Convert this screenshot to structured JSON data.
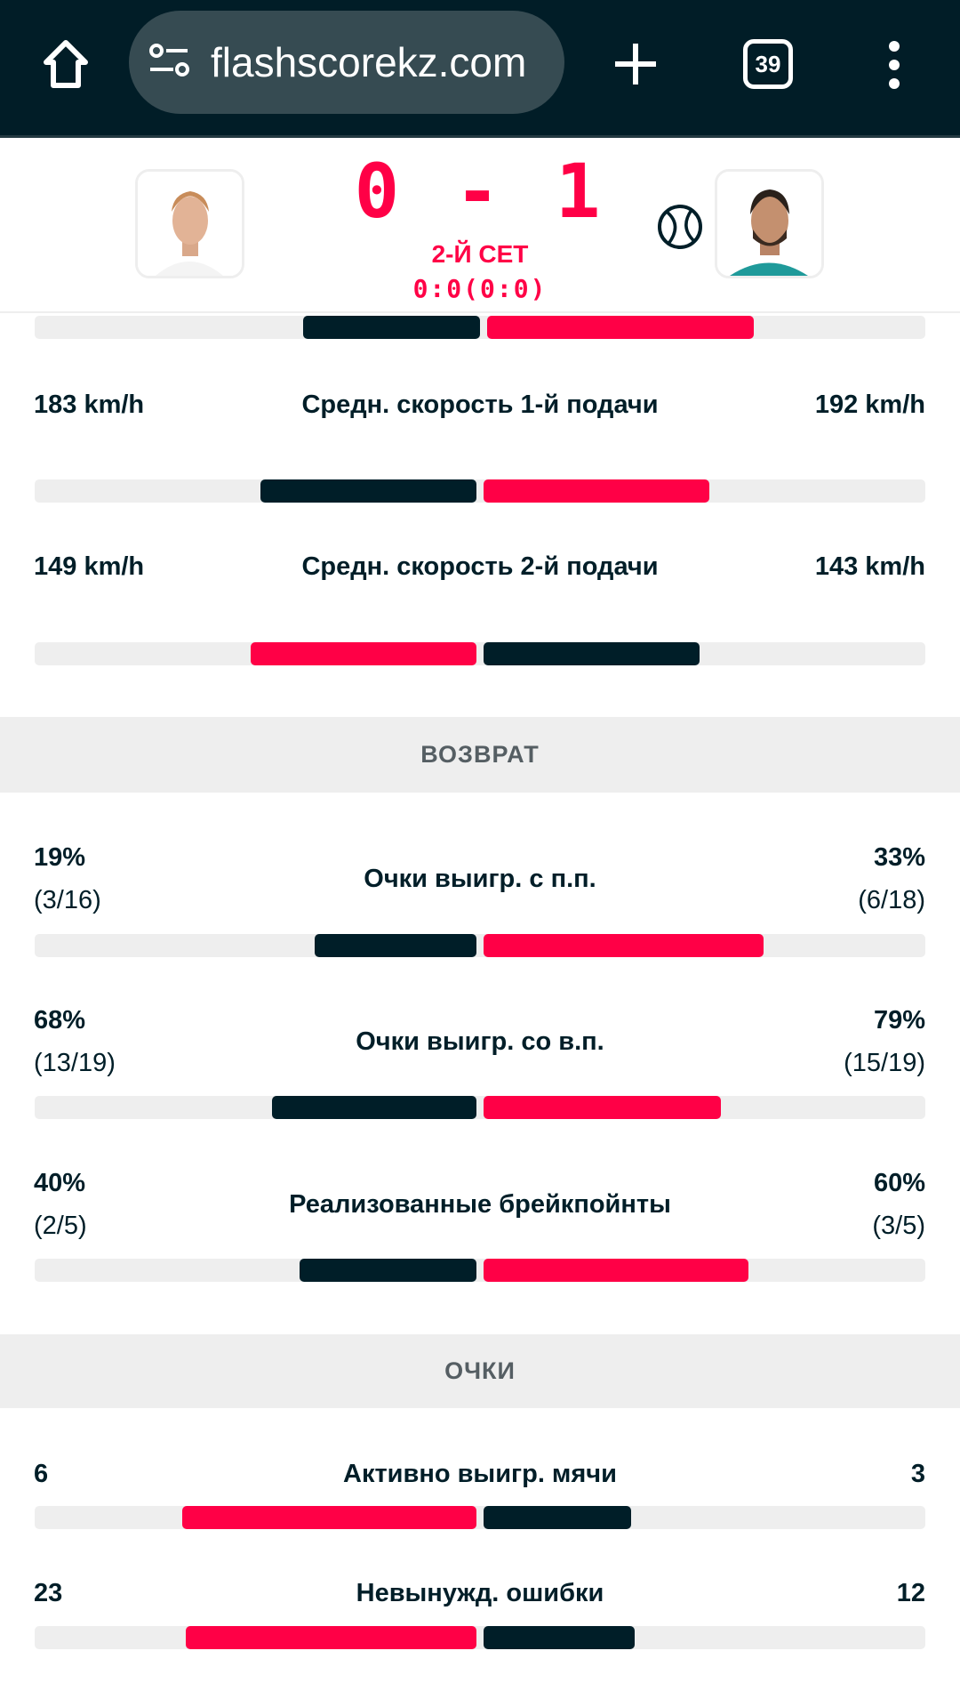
{
  "browser": {
    "url": "flashscorekz.com",
    "tab_count": "39",
    "icons": [
      "home-icon",
      "site-settings-icon",
      "new-tab-icon",
      "tab-switcher-icon",
      "menu-icon"
    ]
  },
  "match": {
    "score": "0 - 1",
    "period": "2-Й СЕТ",
    "games": "0:0(0:0)",
    "serving": "right",
    "serve_icon": "tennis-ball-icon"
  },
  "colors": {
    "accent": "#ff0046",
    "dark": "#001e28",
    "track": "#eeeeee",
    "topbar": "#011d27"
  },
  "top_partial_bar": {
    "left_share": 0.4,
    "right_share": 0.6,
    "left_color": "dark",
    "right_color": "accent"
  },
  "rows_serve": [
    {
      "left": "183 km/h",
      "label": "Средн. скорость 1-й подачи",
      "right": "192 km/h",
      "left_num": 183,
      "right_num": 192
    },
    {
      "left": "149 km/h",
      "label": "Средн. скорость 2-й подачи",
      "right": "143 km/h",
      "left_num": 149,
      "right_num": 143
    }
  ],
  "sections": [
    {
      "title": "ВОЗВРАТ",
      "rows": [
        {
          "left": "19%",
          "left_frac": "(3/16)",
          "label": "Очки выигр. с п.п.",
          "right": "33%",
          "right_frac": "(6/18)",
          "left_num": 19,
          "right_num": 33
        },
        {
          "left": "68%",
          "left_frac": "(13/19)",
          "label": "Очки выигр. со в.п.",
          "right": "79%",
          "right_frac": "(15/19)",
          "left_num": 68,
          "right_num": 79
        },
        {
          "left": "40%",
          "left_frac": "(2/5)",
          "label": "Реализованные брейкпойнты",
          "right": "60%",
          "right_frac": "(3/5)",
          "left_num": 40,
          "right_num": 60
        }
      ]
    },
    {
      "title": "ОЧКИ",
      "rows": [
        {
          "left": "6",
          "label": "Активно выигр. мячи",
          "right": "3",
          "left_num": 6,
          "right_num": 3
        },
        {
          "left": "23",
          "label": "Невынужд. ошибки",
          "right": "12",
          "left_num": 23,
          "right_num": 12
        }
      ]
    }
  ]
}
